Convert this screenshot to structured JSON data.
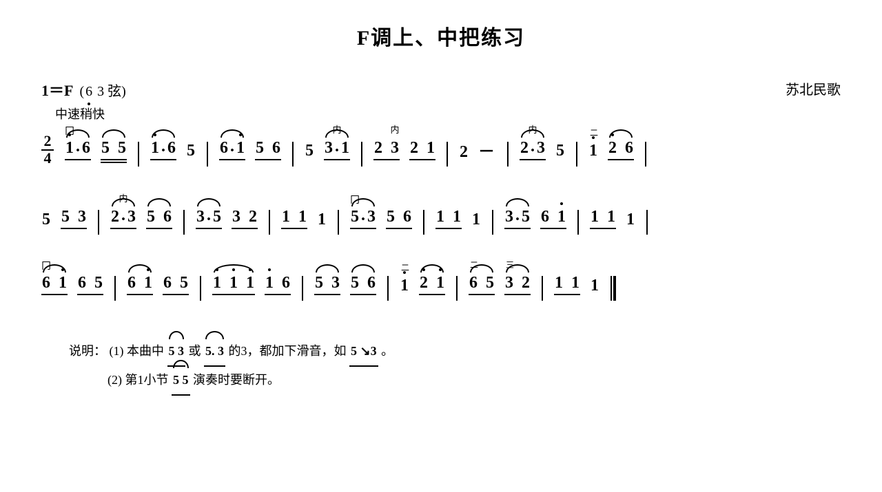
{
  "title": "F调上、中把练习",
  "key_signature": "1＝F",
  "tuning": "(6̣ 3 弦)",
  "attribution": "苏北民歌",
  "tempo": "中速稍快",
  "time_signature": {
    "num": "2",
    "den": "4"
  },
  "bow_mark": "冂",
  "inner_annotation": "内",
  "fingering_2": "二",
  "fingering_3": "三",
  "dash": "－",
  "notes_label": "说明：",
  "note_1_prefix": "(1) 本曲中",
  "note_1_mid": "或",
  "note_1_suffix": "的3，都加下滑音，如",
  "note_1_end": "。",
  "note_2_prefix": "(2) 第1小节",
  "note_2_suffix": "演奏时要断开。",
  "seq_53": "5 3",
  "seq_5d3": "5. 3",
  "seq_5s3": "5 ↘3",
  "seq_55": "5 5",
  "lines": [
    {
      "measures": [
        {
          "groups": [
            {
              "beam": 1,
              "tie": true,
              "bow": true,
              "notes": [
                {
                  "v": "1",
                  "hi": true,
                  "dotted": true
                },
                {
                  "v": "6"
                }
              ]
            },
            {
              "beam": 2,
              "tie": true,
              "notes": [
                {
                  "v": "5"
                },
                {
                  "v": "5"
                }
              ]
            }
          ]
        },
        {
          "groups": [
            {
              "beam": 1,
              "tie": true,
              "notes": [
                {
                  "v": "1",
                  "hi": true,
                  "dotted": true
                },
                {
                  "v": "6"
                }
              ]
            },
            {
              "beam": 0,
              "notes": [
                {
                  "v": "5"
                }
              ]
            }
          ]
        },
        {
          "groups": [
            {
              "beam": 1,
              "tie": true,
              "notes": [
                {
                  "v": "6",
                  "dotted": true
                },
                {
                  "v": "1",
                  "hi": true
                }
              ]
            },
            {
              "beam": 1,
              "notes": [
                {
                  "v": "5"
                },
                {
                  "v": "6"
                }
              ]
            }
          ]
        },
        {
          "groups": [
            {
              "beam": 0,
              "notes": [
                {
                  "v": "5"
                }
              ]
            },
            {
              "beam": 1,
              "tie": true,
              "ann": "内",
              "notes": [
                {
                  "v": "3",
                  "dotted": true
                },
                {
                  "v": "1"
                }
              ]
            }
          ]
        },
        {
          "groups": [
            {
              "beam": 1,
              "notes": [
                {
                  "v": "2"
                },
                {
                  "v": "3",
                  "ann": "内"
                }
              ]
            },
            {
              "beam": 1,
              "notes": [
                {
                  "v": "2"
                },
                {
                  "v": "1"
                }
              ]
            }
          ]
        },
        {
          "groups": [
            {
              "beam": 0,
              "notes": [
                {
                  "v": "2"
                }
              ]
            },
            {
              "beam": 0,
              "notes": [
                {
                  "v": "－",
                  "dash": true
                }
              ]
            }
          ]
        },
        {
          "groups": [
            {
              "beam": 1,
              "tie": true,
              "ann": "内",
              "notes": [
                {
                  "v": "2",
                  "dotted": true
                },
                {
                  "v": "3"
                }
              ]
            },
            {
              "beam": 0,
              "notes": [
                {
                  "v": "5"
                }
              ]
            }
          ]
        },
        {
          "groups": [
            {
              "beam": 0,
              "notes": [
                {
                  "v": "1",
                  "hi": true,
                  "finger": "二"
                }
              ]
            },
            {
              "beam": 1,
              "tie": true,
              "notes": [
                {
                  "v": "2",
                  "hi": true
                },
                {
                  "v": "6"
                }
              ]
            }
          ]
        }
      ]
    },
    {
      "measures": [
        {
          "groups": [
            {
              "beam": 0,
              "notes": [
                {
                  "v": "5"
                }
              ]
            },
            {
              "beam": 1,
              "notes": [
                {
                  "v": "5"
                },
                {
                  "v": "3"
                }
              ]
            }
          ]
        },
        {
          "groups": [
            {
              "beam": 1,
              "tie": true,
              "ann": "内",
              "notes": [
                {
                  "v": "2",
                  "dotted": true
                },
                {
                  "v": "3"
                }
              ]
            },
            {
              "beam": 1,
              "tie": true,
              "notes": [
                {
                  "v": "5"
                },
                {
                  "v": "6"
                }
              ]
            }
          ]
        },
        {
          "groups": [
            {
              "beam": 1,
              "tie": true,
              "notes": [
                {
                  "v": "3",
                  "dotted": true
                },
                {
                  "v": "5"
                }
              ]
            },
            {
              "beam": 1,
              "notes": [
                {
                  "v": "3"
                },
                {
                  "v": "2"
                }
              ]
            }
          ]
        },
        {
          "groups": [
            {
              "beam": 1,
              "notes": [
                {
                  "v": "1"
                },
                {
                  "v": "1"
                }
              ]
            },
            {
              "beam": 0,
              "notes": [
                {
                  "v": "1"
                }
              ]
            }
          ]
        },
        {
          "groups": [
            {
              "beam": 1,
              "tie": true,
              "bow": true,
              "notes": [
                {
                  "v": "5",
                  "dotted": true
                },
                {
                  "v": "3"
                }
              ]
            },
            {
              "beam": 1,
              "notes": [
                {
                  "v": "5"
                },
                {
                  "v": "6"
                }
              ]
            }
          ]
        },
        {
          "groups": [
            {
              "beam": 1,
              "notes": [
                {
                  "v": "1"
                },
                {
                  "v": "1"
                }
              ]
            },
            {
              "beam": 0,
              "notes": [
                {
                  "v": "1"
                }
              ]
            }
          ]
        },
        {
          "groups": [
            {
              "beam": 1,
              "tie": true,
              "notes": [
                {
                  "v": "3",
                  "dotted": true
                },
                {
                  "v": "5"
                }
              ]
            },
            {
              "beam": 1,
              "notes": [
                {
                  "v": "6"
                },
                {
                  "v": "1",
                  "hi": true
                }
              ]
            }
          ]
        },
        {
          "groups": [
            {
              "beam": 1,
              "notes": [
                {
                  "v": "1"
                },
                {
                  "v": "1"
                }
              ]
            },
            {
              "beam": 0,
              "notes": [
                {
                  "v": "1"
                }
              ]
            }
          ]
        }
      ]
    },
    {
      "measures": [
        {
          "groups": [
            {
              "beam": 1,
              "tie": true,
              "bow": true,
              "notes": [
                {
                  "v": "6"
                },
                {
                  "v": "1",
                  "hi": true
                }
              ]
            },
            {
              "beam": 1,
              "notes": [
                {
                  "v": "6"
                },
                {
                  "v": "5"
                }
              ]
            }
          ]
        },
        {
          "groups": [
            {
              "beam": 1,
              "tie": true,
              "notes": [
                {
                  "v": "6"
                },
                {
                  "v": "1",
                  "hi": true
                }
              ]
            },
            {
              "beam": 1,
              "notes": [
                {
                  "v": "6"
                },
                {
                  "v": "5"
                }
              ]
            }
          ]
        },
        {
          "groups": [
            {
              "beam": 1,
              "tie": true,
              "notes": [
                {
                  "v": "1",
                  "hi": true
                },
                {
                  "v": "1",
                  "hi": true
                },
                {
                  "v": "1",
                  "hi": true
                }
              ]
            },
            {
              "beam": 1,
              "notes": [
                {
                  "v": "1",
                  "hi": true
                },
                {
                  "v": "6"
                }
              ]
            }
          ]
        },
        {
          "groups": [
            {
              "beam": 1,
              "tie": true,
              "notes": [
                {
                  "v": "5"
                },
                {
                  "v": "3"
                }
              ]
            },
            {
              "beam": 1,
              "tie": true,
              "notes": [
                {
                  "v": "5"
                },
                {
                  "v": "6"
                }
              ]
            }
          ]
        },
        {
          "groups": [
            {
              "beam": 0,
              "notes": [
                {
                  "v": "1",
                  "hi": true,
                  "finger": "二"
                }
              ]
            },
            {
              "beam": 1,
              "tie": true,
              "notes": [
                {
                  "v": "2",
                  "hi": true
                },
                {
                  "v": "1",
                  "hi": true
                }
              ]
            }
          ]
        },
        {
          "groups": [
            {
              "beam": 1,
              "tie": true,
              "notes": [
                {
                  "v": "6",
                  "finger": "二"
                },
                {
                  "v": "5"
                }
              ]
            },
            {
              "beam": 1,
              "tie": true,
              "notes": [
                {
                  "v": "3",
                  "finger": "三"
                },
                {
                  "v": "2"
                }
              ]
            }
          ]
        },
        {
          "groups": [
            {
              "beam": 1,
              "notes": [
                {
                  "v": "1"
                },
                {
                  "v": "1"
                }
              ]
            },
            {
              "beam": 0,
              "notes": [
                {
                  "v": "1"
                }
              ]
            }
          ]
        }
      ],
      "final": true
    }
  ]
}
